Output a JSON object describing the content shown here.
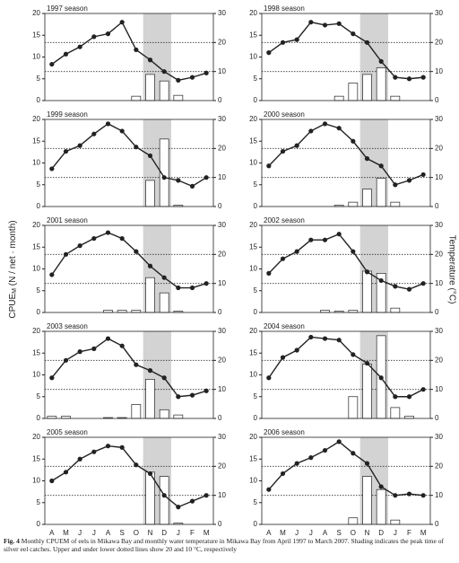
{
  "figure": {
    "ylabel": "CPUE",
    "ylabel_sub": "M",
    "ylabel_rest": " (N / net · month)",
    "y2label": "Temperature (°C)",
    "caption_label": "Fig. 4",
    "caption": "Monthly CPUEM of eels in Mikawa Bay and monthly water temperature in Mikawa Bay from April 1997 to March 2007. Shading indicates the peak time of silver eel catches. Upper and under lower dotted lines show 20 and 10 °C, respectively"
  },
  "chart_data": [
    {
      "type": "bar-line",
      "title": "1997 season",
      "ylim": [
        0,
        20
      ],
      "yticks": [
        0,
        5,
        10,
        15,
        20
      ],
      "y2lim": [
        0,
        30
      ],
      "y2ticks": [
        0,
        10,
        20,
        30
      ],
      "shade": [
        7,
        8
      ],
      "reference_lines_y2": [
        20,
        10
      ],
      "series": [
        {
          "type": "bar",
          "color": "#ffffff",
          "values": [
            0,
            0,
            0,
            0,
            0,
            0,
            1,
            6,
            4.5,
            1.2,
            0,
            0
          ]
        },
        {
          "type": "line",
          "axis": "y2",
          "color": "#222222",
          "values": [
            12.5,
            16,
            18.5,
            22,
            23,
            27,
            17.5,
            14,
            10,
            7,
            8,
            9.5
          ]
        }
      ]
    },
    {
      "type": "bar-line",
      "title": "1998 season",
      "ylim": [
        0,
        20
      ],
      "yticks": [
        0,
        5,
        10,
        15,
        20
      ],
      "y2lim": [
        0,
        30
      ],
      "y2ticks": [
        0,
        10,
        20,
        30
      ],
      "shade": [
        7,
        8
      ],
      "reference_lines_y2": [
        20,
        10
      ],
      "series": [
        {
          "type": "bar",
          "color": "#ffffff",
          "values": [
            0,
            0,
            0,
            0,
            0,
            1,
            4,
            6,
            7.5,
            1,
            0,
            0
          ]
        },
        {
          "type": "line",
          "axis": "y2",
          "color": "#222222",
          "values": [
            16.5,
            20,
            21,
            27,
            26,
            26.5,
            23,
            20,
            13.5,
            8,
            7.5,
            8
          ]
        }
      ]
    },
    {
      "type": "bar-line",
      "title": "1999 season",
      "ylim": [
        0,
        20
      ],
      "yticks": [
        0,
        5,
        10,
        15,
        20
      ],
      "y2lim": [
        0,
        30
      ],
      "y2ticks": [
        0,
        10,
        20,
        30
      ],
      "shade": [
        7,
        8
      ],
      "reference_lines_y2": [
        20,
        10
      ],
      "series": [
        {
          "type": "bar",
          "color": "#ffffff",
          "values": [
            0,
            0,
            0,
            0,
            0,
            0,
            0,
            6,
            15.5,
            0.3,
            0,
            0
          ]
        },
        {
          "type": "line",
          "axis": "y2",
          "color": "#222222",
          "values": [
            13,
            19,
            21,
            25,
            28.5,
            26,
            20.5,
            17.5,
            10,
            9,
            7,
            10
          ]
        }
      ]
    },
    {
      "type": "bar-line",
      "title": "2000 season",
      "ylim": [
        0,
        20
      ],
      "yticks": [
        0,
        5,
        10,
        15,
        20
      ],
      "y2lim": [
        0,
        30
      ],
      "y2ticks": [
        0,
        10,
        20,
        30
      ],
      "shade": [
        7,
        8
      ],
      "reference_lines_y2": [
        20,
        10
      ],
      "series": [
        {
          "type": "bar",
          "color": "#ffffff",
          "values": [
            0,
            0,
            0,
            0,
            0,
            0.3,
            1,
            4,
            6.5,
            1,
            0,
            0
          ]
        },
        {
          "type": "line",
          "axis": "y2",
          "color": "#222222",
          "values": [
            14,
            19,
            21,
            26,
            28.5,
            27,
            22.5,
            16.5,
            14,
            7.5,
            9,
            11
          ]
        }
      ]
    },
    {
      "type": "bar-line",
      "title": "2001 season",
      "ylim": [
        0,
        20
      ],
      "yticks": [
        0,
        5,
        10,
        15,
        20
      ],
      "y2lim": [
        0,
        30
      ],
      "y2ticks": [
        0,
        10,
        20,
        30
      ],
      "shade": [
        7,
        8
      ],
      "reference_lines_y2": [
        20,
        10
      ],
      "series": [
        {
          "type": "bar",
          "color": "#ffffff",
          "values": [
            0,
            0,
            0,
            0,
            0.5,
            0.5,
            0.5,
            8,
            4.5,
            0.3,
            0,
            0
          ]
        },
        {
          "type": "line",
          "axis": "y2",
          "color": "#222222",
          "values": [
            13,
            20,
            23,
            25.5,
            27.5,
            25.5,
            21,
            16,
            12,
            8.5,
            8.5,
            10
          ]
        }
      ]
    },
    {
      "type": "bar-line",
      "title": "2002 season",
      "ylim": [
        0,
        20
      ],
      "yticks": [
        0,
        5,
        10,
        15,
        20
      ],
      "y2lim": [
        0,
        30
      ],
      "y2ticks": [
        0,
        10,
        20,
        30
      ],
      "shade": [
        7,
        8
      ],
      "reference_lines_y2": [
        20,
        10
      ],
      "series": [
        {
          "type": "bar",
          "color": "#ffffff",
          "values": [
            0,
            0,
            0,
            0,
            0.5,
            0.3,
            0.5,
            9.5,
            9,
            1,
            0,
            0
          ]
        },
        {
          "type": "line",
          "axis": "y2",
          "color": "#222222",
          "values": [
            13.5,
            18.5,
            21,
            25,
            25,
            27,
            21,
            14,
            11,
            9,
            8,
            10
          ]
        }
      ]
    },
    {
      "type": "bar-line",
      "title": "2003 season",
      "ylim": [
        0,
        20
      ],
      "yticks": [
        0,
        5,
        10,
        15,
        20
      ],
      "y2lim": [
        0,
        30
      ],
      "y2ticks": [
        0,
        10,
        20,
        30
      ],
      "shade": [
        7,
        8
      ],
      "reference_lines_y2": [
        20,
        10
      ],
      "series": [
        {
          "type": "bar",
          "color": "#ffffff",
          "values": [
            0.5,
            0.5,
            0,
            0,
            0.2,
            0.2,
            3.2,
            9,
            2,
            0.8,
            0,
            0
          ]
        },
        {
          "type": "line",
          "axis": "y2",
          "color": "#222222",
          "values": [
            14,
            20,
            23,
            24,
            27.5,
            25,
            18.5,
            16.5,
            14,
            7.5,
            8,
            9.5
          ]
        }
      ]
    },
    {
      "type": "bar-line",
      "title": "2004 season",
      "ylim": [
        0,
        20
      ],
      "yticks": [
        0,
        5,
        10,
        15,
        20
      ],
      "y2lim": [
        0,
        30
      ],
      "y2ticks": [
        0,
        10,
        20,
        30
      ],
      "shade": [
        7,
        8
      ],
      "reference_lines_y2": [
        20,
        10
      ],
      "series": [
        {
          "type": "bar",
          "color": "#ffffff",
          "values": [
            0,
            0,
            0,
            0,
            0,
            0,
            5,
            12.5,
            19,
            2.5,
            0.5,
            0
          ]
        },
        {
          "type": "line",
          "axis": "y2",
          "color": "#222222",
          "values": [
            14,
            21,
            23.5,
            28,
            27.5,
            27,
            22,
            19,
            14,
            7.5,
            7.5,
            10
          ]
        }
      ]
    },
    {
      "type": "bar-line",
      "title": "2005 season",
      "ylim": [
        0,
        20
      ],
      "yticks": [
        0,
        5,
        10,
        15,
        20
      ],
      "y2lim": [
        0,
        30
      ],
      "y2ticks": [
        0,
        10,
        20,
        30
      ],
      "shade": [
        7,
        8
      ],
      "reference_lines_y2": [
        20,
        10
      ],
      "categories": [
        "A",
        "M",
        "J",
        "J",
        "A",
        "S",
        "O",
        "N",
        "D",
        "J",
        "F",
        "M"
      ],
      "series": [
        {
          "type": "bar",
          "color": "#ffffff",
          "values": [
            0,
            0,
            0,
            0,
            0,
            0,
            0,
            12,
            11,
            0.3,
            0,
            0
          ]
        },
        {
          "type": "line",
          "axis": "y2",
          "color": "#222222",
          "values": [
            15,
            18,
            22.5,
            25,
            27,
            26.5,
            20.5,
            17.5,
            10,
            6,
            8,
            10
          ]
        }
      ]
    },
    {
      "type": "bar-line",
      "title": "2006 season",
      "ylim": [
        0,
        20
      ],
      "yticks": [
        0,
        5,
        10,
        15,
        20
      ],
      "y2lim": [
        0,
        30
      ],
      "y2ticks": [
        0,
        10,
        20,
        30
      ],
      "shade": [
        7,
        8
      ],
      "reference_lines_y2": [
        20,
        10
      ],
      "categories": [
        "A",
        "M",
        "J",
        "J",
        "A",
        "S",
        "O",
        "N",
        "D",
        "J",
        "F",
        "M"
      ],
      "series": [
        {
          "type": "bar",
          "color": "#ffffff",
          "values": [
            0,
            0,
            0,
            0,
            0,
            0,
            1.5,
            11,
            8,
            1,
            0,
            0
          ]
        },
        {
          "type": "line",
          "axis": "y2",
          "color": "#222222",
          "values": [
            12,
            17.5,
            21,
            23,
            25.5,
            28.5,
            24.5,
            21,
            13,
            10,
            10.5,
            10
          ]
        }
      ]
    }
  ]
}
